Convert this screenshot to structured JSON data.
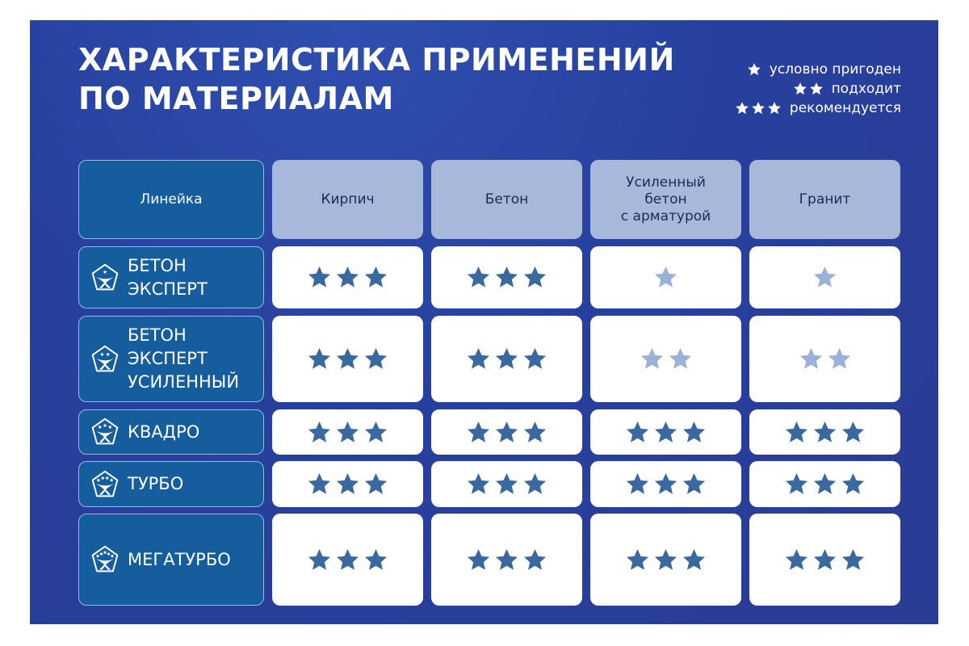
{
  "title_lines": [
    "ХАРАКТЕРИСТИКА ПРИМЕНЕНИЙ",
    "ПО МАТЕРИАЛАМ"
  ],
  "legend": [
    {
      "stars": 1,
      "label": "условно пригоден"
    },
    {
      "stars": 2,
      "label": "подходит"
    },
    {
      "stars": 3,
      "label": "рекомендуется"
    }
  ],
  "colors": {
    "background": "#2a3f9a",
    "row_label": "#155d9c",
    "header": "#a7b8da",
    "star_full": "#3a68a0",
    "star_light": "#9cb1d8"
  },
  "table": {
    "corner_header": "Линейка",
    "columns": [
      "Кирпич",
      "Бетон",
      "Усиленный\nбетон\nс арматурой",
      "Гранит"
    ],
    "rows": [
      {
        "name": "БЕТОН\nЭКСПЕРТ",
        "icon": "pentagon-figure-1-star-icon",
        "icon_stars": 1,
        "ratings": [
          3,
          3,
          1,
          1
        ]
      },
      {
        "name": "БЕТОН\nЭКСПЕРТ\nУСИЛЕННЫЙ",
        "icon": "pentagon-figure-2-stars-icon",
        "icon_stars": 2,
        "ratings": [
          3,
          3,
          2,
          2
        ]
      },
      {
        "name": "КВАДРО",
        "icon": "pentagon-figure-3-stars-icon",
        "icon_stars": 3,
        "ratings": [
          3,
          3,
          3,
          3
        ]
      },
      {
        "name": "ТУРБО",
        "icon": "pentagon-figure-4-stars-icon",
        "icon_stars": 4,
        "ratings": [
          3,
          3,
          3,
          3
        ]
      },
      {
        "name": "МЕГАТУРБО",
        "icon": "pentagon-figure-5-stars-icon",
        "icon_stars": 5,
        "ratings": [
          3,
          3,
          3,
          3
        ]
      }
    ]
  }
}
